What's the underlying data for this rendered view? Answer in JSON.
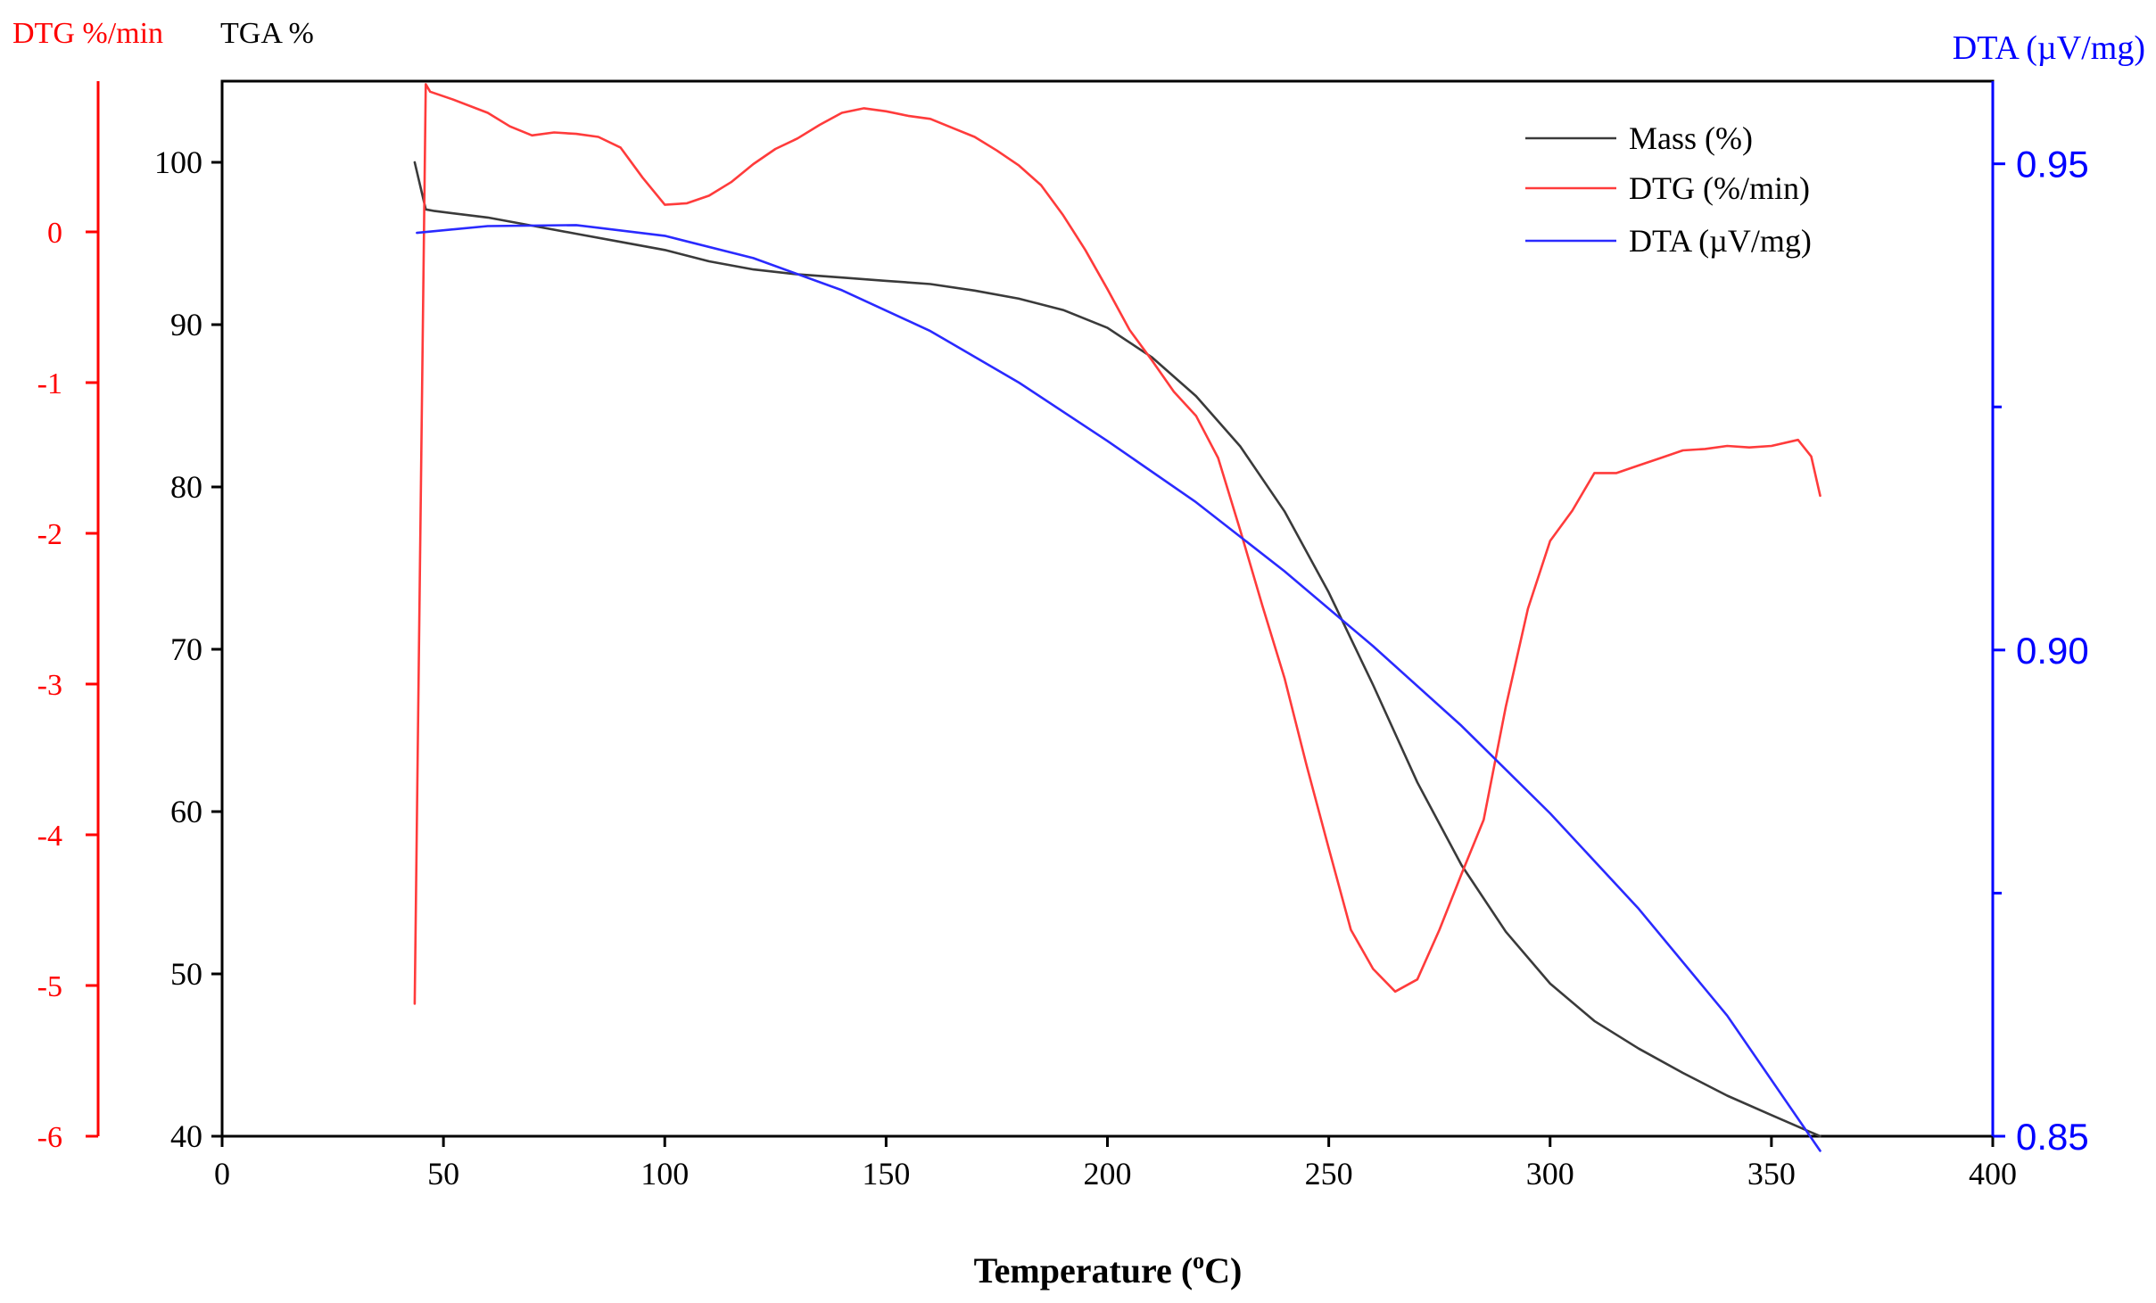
{
  "chart_data": {
    "type": "line",
    "xlabel_main": "Temperature (",
    "xlabel_sup": "o",
    "xlabel_end": "C)",
    "x_ticks": [
      "0",
      "50",
      "100",
      "150",
      "200",
      "250",
      "300",
      "350",
      "400"
    ],
    "xlim": [
      0,
      400
    ],
    "axes": {
      "dtg": {
        "label": "DTG %/min",
        "ylim": [
          -6,
          1
        ],
        "ticks": [
          "-6",
          "-5",
          "-4",
          "-3",
          "-2",
          "-1",
          "0"
        ],
        "color": "#ff0000"
      },
      "tga": {
        "label": "TGA %",
        "ylim": [
          40,
          105
        ],
        "ticks": [
          "40",
          "50",
          "60",
          "70",
          "80",
          "90",
          "100"
        ],
        "color": "#000000"
      },
      "dta": {
        "label": "DTA (µV/mg)",
        "ylim": [
          0.85,
          0.9585
        ],
        "ticks": [
          "0.85",
          "0.90",
          "0.95"
        ],
        "minor_ticks": [
          0.875,
          0.925
        ],
        "color": "#0000ff"
      }
    },
    "legend": {
      "placement": "top-right",
      "entries": [
        "Mass (%)",
        "DTG (%/min)",
        "DTA (µV/mg)"
      ]
    },
    "series": [
      {
        "name": "Mass (%)",
        "axis": "tga",
        "color": "#3a3a3a",
        "x": [
          43.5,
          46,
          48,
          60,
          70,
          80,
          90,
          100,
          110,
          120,
          130,
          140,
          150,
          160,
          170,
          180,
          190,
          200,
          210,
          220,
          230,
          240,
          250,
          260,
          270,
          280,
          290,
          300,
          310,
          320,
          330,
          340,
          350,
          361
        ],
        "y": [
          100,
          97.1,
          97.0,
          96.6,
          96.1,
          95.6,
          95.1,
          94.6,
          93.9,
          93.4,
          93.1,
          92.9,
          92.7,
          92.5,
          92.1,
          91.6,
          90.9,
          89.8,
          88.0,
          85.6,
          82.5,
          78.5,
          73.5,
          67.8,
          61.8,
          56.7,
          52.6,
          49.4,
          47.1,
          45.4,
          43.9,
          42.5,
          41.3,
          40.0
        ]
      },
      {
        "name": "DTG (%/min)",
        "axis": "dtg",
        "color": "#ff3b3b",
        "x": [
          43.5,
          46,
          47,
          52,
          60,
          65,
          70,
          75,
          80,
          85,
          90,
          95,
          100,
          105,
          110,
          115,
          120,
          125,
          130,
          135,
          140,
          145,
          150,
          155,
          160,
          165,
          170,
          175,
          180,
          185,
          190,
          195,
          200,
          205,
          210,
          215,
          220,
          225,
          230,
          235,
          240,
          245,
          250,
          255,
          260,
          265,
          270,
          275,
          280,
          285,
          290,
          295,
          300,
          305,
          310,
          315,
          320,
          325,
          330,
          335,
          340,
          345,
          350,
          356,
          359,
          361
        ],
        "y": [
          -5.12,
          0.98,
          0.93,
          0.88,
          0.79,
          0.7,
          0.64,
          0.66,
          0.65,
          0.63,
          0.56,
          0.36,
          0.18,
          0.19,
          0.24,
          0.33,
          0.45,
          0.55,
          0.62,
          0.71,
          0.79,
          0.82,
          0.8,
          0.77,
          0.75,
          0.69,
          0.63,
          0.54,
          0.44,
          0.31,
          0.11,
          -0.12,
          -0.38,
          -0.65,
          -0.85,
          -1.06,
          -1.22,
          -1.5,
          -1.98,
          -2.48,
          -2.96,
          -3.54,
          -4.09,
          -4.63,
          -4.89,
          -5.04,
          -4.96,
          -4.63,
          -4.26,
          -3.9,
          -3.15,
          -2.5,
          -2.05,
          -1.85,
          -1.6,
          -1.6,
          -1.55,
          -1.5,
          -1.45,
          -1.44,
          -1.42,
          -1.43,
          -1.42,
          -1.38,
          -1.49,
          -1.75
        ]
      },
      {
        "name": "DTA (µV/mg)",
        "axis": "dta",
        "color": "#2a2aff",
        "x": [
          44,
          60,
          80,
          100,
          120,
          140,
          160,
          180,
          200,
          220,
          240,
          260,
          280,
          300,
          320,
          340,
          361
        ],
        "y": [
          0.9429,
          0.9436,
          0.9437,
          0.9426,
          0.9403,
          0.937,
          0.9328,
          0.9275,
          0.9215,
          0.9152,
          0.9081,
          0.9004,
          0.8922,
          0.8832,
          0.8734,
          0.8624,
          0.8485
        ]
      }
    ]
  }
}
